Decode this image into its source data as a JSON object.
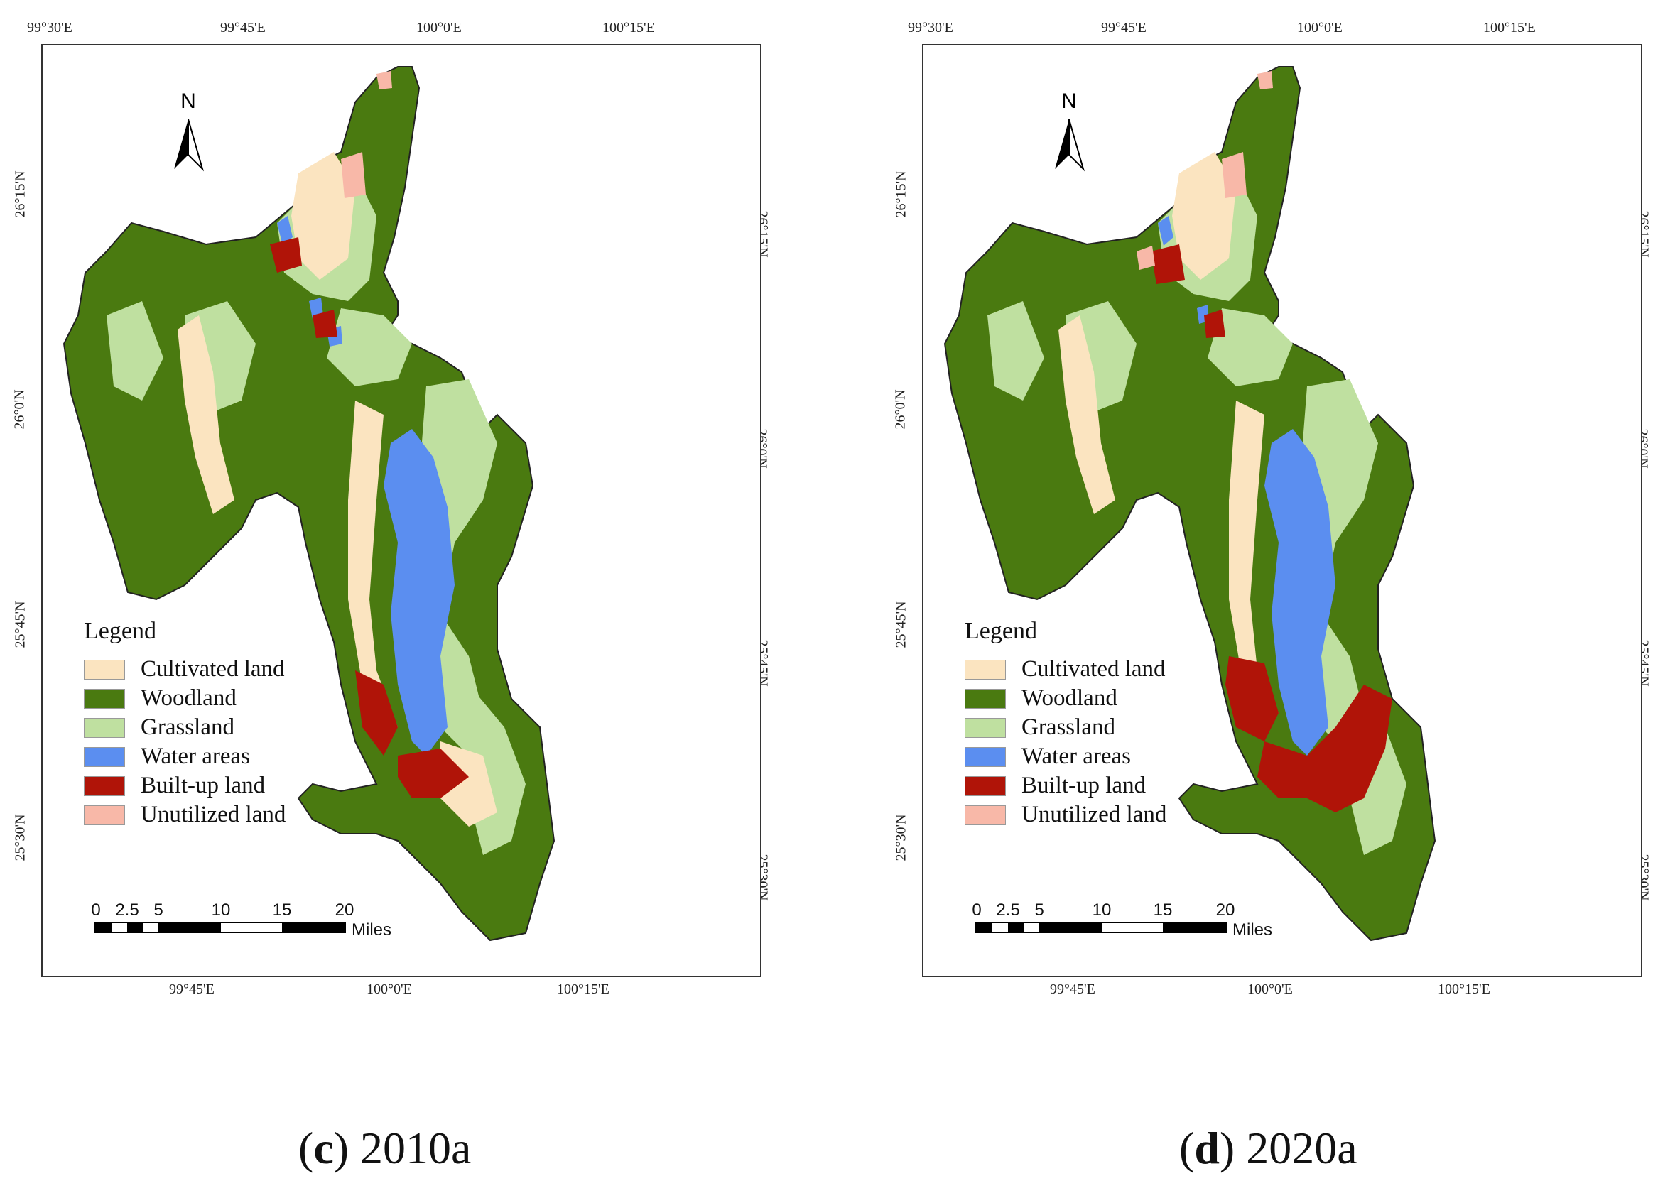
{
  "panels": [
    {
      "caption_letter": "c",
      "caption_year": "2010a",
      "top_ticks": [
        "99°30'E",
        "99°45'E",
        "100°0'E",
        "100°15'E"
      ],
      "bottom_ticks": [
        "99°45'E",
        "100°0'E",
        "100°15'E"
      ],
      "left_ticks": [
        "26°15'N",
        "26°0'N",
        "25°45'N",
        "25°30'N"
      ],
      "right_ticks": [
        "26°15'N",
        "26°0'N",
        "25°45'N",
        "25°30'N"
      ],
      "north_label": "N",
      "legend": {
        "title": "Legend",
        "items": [
          "Cultivated land",
          "Woodland",
          "Grassland",
          "Water areas",
          "Built-up land",
          "Unutilized land"
        ]
      },
      "scale": {
        "labels": [
          "0",
          "2.5",
          "5",
          "10",
          "15",
          "20"
        ],
        "unit": "Miles"
      }
    },
    {
      "caption_letter": "d",
      "caption_year": "2020a",
      "top_ticks": [
        "99°30'E",
        "99°45'E",
        "100°0'E",
        "100°15'E"
      ],
      "bottom_ticks": [
        "99°45'E",
        "100°0'E",
        "100°15'E"
      ],
      "left_ticks": [
        "26°15'N",
        "26°0'N",
        "25°45'N",
        "25°30'N"
      ],
      "right_ticks": [
        "26°15'N",
        "26°0'N",
        "25°45'N",
        "25°30'N"
      ],
      "north_label": "N",
      "legend": {
        "title": "Legend",
        "items": [
          "Cultivated land",
          "Woodland",
          "Grassland",
          "Water areas",
          "Built-up land",
          "Unutilized land"
        ]
      },
      "scale": {
        "labels": [
          "0",
          "2.5",
          "5",
          "10",
          "15",
          "20"
        ],
        "unit": "Miles"
      }
    }
  ],
  "colors": {
    "cultivated": "#fbe4c0",
    "woodland": "#4a7a10",
    "grassland": "#bfe0a0",
    "water": "#5b8ef0",
    "builtup": "#b01408",
    "unutilized": "#f8b8a8"
  }
}
